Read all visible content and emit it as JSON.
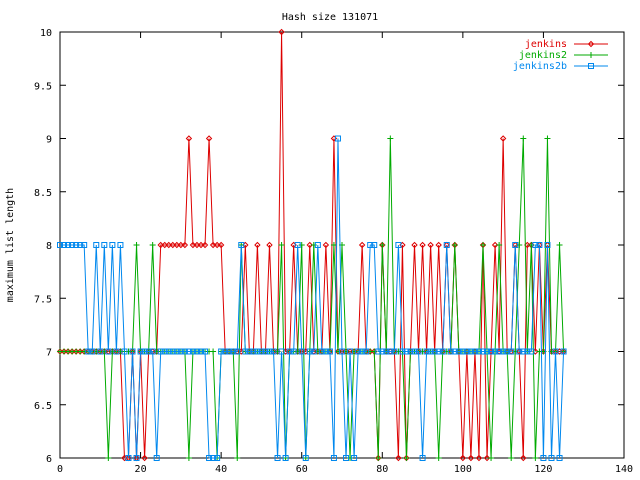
{
  "chart_data": {
    "type": "line",
    "title": "Hash size 131071",
    "xlabel": "",
    "ylabel": "maximum list length",
    "xlim": [
      0,
      140
    ],
    "ylim": [
      6,
      10
    ],
    "xticks": [
      0,
      20,
      40,
      60,
      80,
      100,
      120,
      140
    ],
    "yticks": [
      6,
      6.5,
      7,
      7.5,
      8,
      8.5,
      9,
      9.5,
      10
    ],
    "grid": false,
    "legend": "top-right",
    "x": [
      0,
      1,
      2,
      3,
      4,
      5,
      6,
      7,
      8,
      9,
      10,
      11,
      12,
      13,
      14,
      15,
      16,
      17,
      18,
      19,
      20,
      21,
      22,
      23,
      24,
      25,
      26,
      27,
      28,
      29,
      30,
      31,
      32,
      33,
      34,
      35,
      36,
      37,
      38,
      39,
      40,
      41,
      42,
      43,
      44,
      45,
      46,
      47,
      48,
      49,
      50,
      51,
      52,
      53,
      54,
      55,
      56,
      57,
      58,
      59,
      60,
      61,
      62,
      63,
      64,
      65,
      66,
      67,
      68,
      69,
      70,
      71,
      72,
      73,
      74,
      75,
      76,
      77,
      78,
      79,
      80,
      81,
      82,
      83,
      84,
      85,
      86,
      87,
      88,
      89,
      90,
      91,
      92,
      93,
      94,
      95,
      96,
      97,
      98,
      99,
      100,
      101,
      102,
      103,
      104,
      105,
      106,
      107,
      108,
      109,
      110,
      111,
      112,
      113,
      114,
      115,
      116,
      117,
      118,
      119,
      120,
      121,
      122,
      123,
      124,
      125
    ],
    "series": [
      {
        "name": "jenkins",
        "color": "#dd0000",
        "marker": "diamond",
        "values": [
          7,
          7,
          7,
          7,
          7,
          7,
          7,
          7,
          7,
          7,
          7,
          7,
          7,
          7,
          7,
          7,
          6,
          6,
          7,
          6,
          7,
          6,
          7,
          7,
          7,
          8,
          8,
          8,
          8,
          8,
          8,
          8,
          9,
          8,
          8,
          8,
          8,
          9,
          8,
          8,
          8,
          7,
          7,
          7,
          7,
          7,
          8,
          7,
          7,
          8,
          7,
          7,
          8,
          7,
          7,
          10,
          7,
          7,
          8,
          7,
          7,
          7,
          8,
          7,
          7,
          7,
          8,
          7,
          9,
          7,
          7,
          7,
          7,
          7,
          7,
          8,
          7,
          7,
          7,
          6,
          8,
          7,
          7,
          7,
          6,
          8,
          6,
          7,
          8,
          7,
          8,
          7,
          8,
          7,
          8,
          7,
          8,
          7,
          8,
          7,
          6,
          7,
          6,
          7,
          6,
          8,
          6,
          7,
          8,
          7,
          9,
          7,
          7,
          8,
          7,
          6,
          8,
          8,
          7,
          8,
          7,
          8,
          7,
          7,
          7,
          7
        ]
      },
      {
        "name": "jenkins2",
        "color": "#00aa00",
        "marker": "plus",
        "values": [
          7,
          7,
          7,
          7,
          7,
          7,
          7,
          7,
          7,
          7,
          7,
          7,
          6,
          7,
          7,
          7,
          7,
          7,
          7,
          8,
          7,
          7,
          7,
          8,
          7,
          7,
          7,
          7,
          7,
          7,
          7,
          7,
          6,
          7,
          7,
          7,
          7,
          7,
          7,
          6,
          7,
          7,
          7,
          7,
          6,
          8,
          7,
          7,
          7,
          7,
          7,
          7,
          7,
          7,
          7,
          8,
          6,
          7,
          7,
          7,
          8,
          6,
          7,
          8,
          7,
          7,
          7,
          7,
          8,
          7,
          8,
          7,
          6,
          7,
          7,
          7,
          7,
          7,
          7,
          6,
          8,
          7,
          9,
          7,
          7,
          7,
          6,
          7,
          7,
          7,
          7,
          7,
          7,
          7,
          6,
          7,
          7,
          7,
          8,
          7,
          7,
          7,
          7,
          7,
          7,
          8,
          7,
          6,
          7,
          8,
          7,
          7,
          6,
          7,
          8,
          9,
          7,
          8,
          6,
          7,
          7,
          9,
          7,
          7,
          8,
          7
        ]
      },
      {
        "name": "jenkins2b",
        "color": "#0088ee",
        "marker": "square",
        "values": [
          8,
          8,
          8,
          8,
          8,
          8,
          8,
          7,
          7,
          8,
          7,
          8,
          7,
          8,
          7,
          8,
          7,
          6,
          7,
          6,
          7,
          7,
          7,
          7,
          6,
          7,
          7,
          7,
          7,
          7,
          7,
          7,
          7,
          7,
          7,
          7,
          7,
          6,
          6,
          6,
          7,
          7,
          7,
          7,
          7,
          8,
          7,
          7,
          7,
          7,
          7,
          7,
          7,
          7,
          6,
          7,
          6,
          7,
          7,
          8,
          7,
          6,
          7,
          7,
          8,
          7,
          7,
          7,
          6,
          9,
          7,
          6,
          7,
          6,
          7,
          7,
          7,
          8,
          8,
          7,
          7,
          7,
          7,
          7,
          8,
          7,
          7,
          7,
          7,
          7,
          6,
          7,
          7,
          7,
          7,
          7,
          8,
          7,
          7,
          7,
          7,
          7,
          7,
          7,
          7,
          7,
          7,
          7,
          7,
          7,
          7,
          7,
          7,
          8,
          7,
          7,
          7,
          7,
          8,
          8,
          6,
          8,
          6,
          7,
          6,
          7
        ]
      }
    ]
  }
}
